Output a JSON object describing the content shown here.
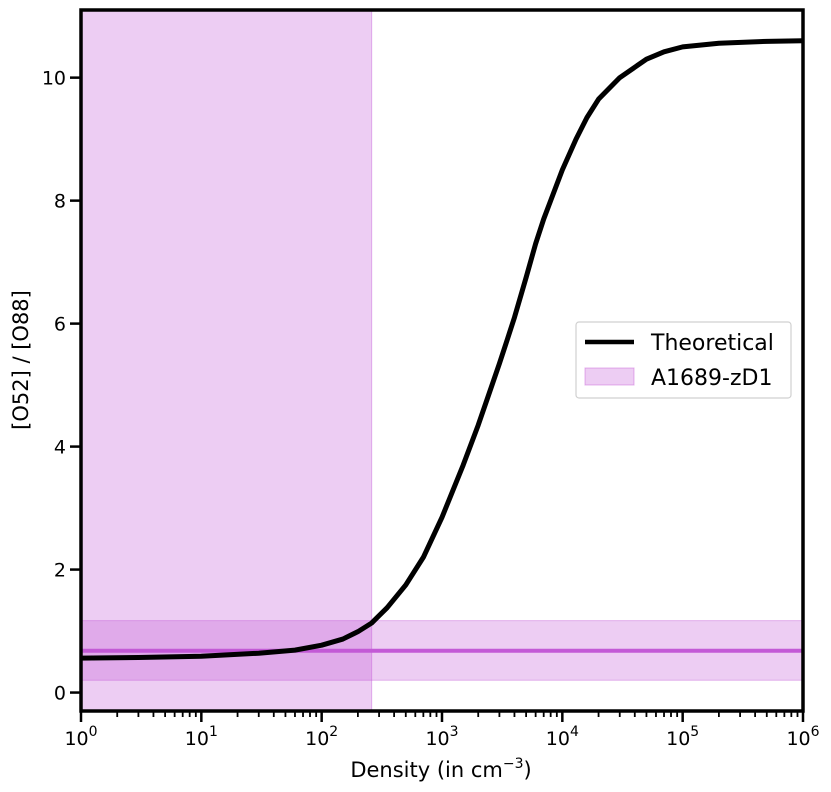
{
  "chart_data": {
    "type": "line",
    "xlabel": "Density (in cm",
    "xlabel_sup": "−3",
    "xlabel_end": ")",
    "ylabel": "[O52] / [O88]",
    "xscale": "log",
    "xlim": [
      1,
      1000000
    ],
    "ylim": [
      -0.3,
      11.1
    ],
    "x_ticks": [
      {
        "value": 1,
        "base": "10",
        "exp": "0"
      },
      {
        "value": 10,
        "base": "10",
        "exp": "1"
      },
      {
        "value": 100,
        "base": "10",
        "exp": "2"
      },
      {
        "value": 1000,
        "base": "10",
        "exp": "3"
      },
      {
        "value": 10000,
        "base": "10",
        "exp": "4"
      },
      {
        "value": 100000,
        "base": "10",
        "exp": "5"
      },
      {
        "value": 1000000,
        "base": "10",
        "exp": "6"
      }
    ],
    "y_ticks": [
      {
        "value": 0,
        "label": "0"
      },
      {
        "value": 2,
        "label": "2"
      },
      {
        "value": 4,
        "label": "4"
      },
      {
        "value": 6,
        "label": "6"
      },
      {
        "value": 8,
        "label": "8"
      },
      {
        "value": 10,
        "label": "10"
      }
    ],
    "grid": false,
    "legend_position": "center-right",
    "series": [
      {
        "name": "Theoretical",
        "kind": "line",
        "color": "#000000",
        "x": [
          1,
          3,
          10,
          30,
          60,
          100,
          150,
          200,
          260,
          350,
          500,
          700,
          1000,
          1500,
          2000,
          2500,
          3000,
          3500,
          4000,
          5000,
          6000,
          7000,
          8000,
          10000,
          13000,
          16000,
          20000,
          30000,
          50000,
          70000,
          100000,
          200000,
          500000,
          1000000
        ],
        "y": [
          0.56,
          0.57,
          0.59,
          0.64,
          0.69,
          0.77,
          0.87,
          0.99,
          1.13,
          1.38,
          1.75,
          2.2,
          2.85,
          3.7,
          4.35,
          4.9,
          5.35,
          5.75,
          6.1,
          6.75,
          7.3,
          7.7,
          8.0,
          8.5,
          9.0,
          9.35,
          9.65,
          10.0,
          10.3,
          10.42,
          10.5,
          10.56,
          10.59,
          10.6
        ]
      },
      {
        "name": "A1689-zD1",
        "kind": "band",
        "color": "#c35ad6",
        "density_upper_limit": 260,
        "ratio_value": 0.68,
        "ratio_range": [
          0.2,
          1.17
        ]
      }
    ]
  }
}
